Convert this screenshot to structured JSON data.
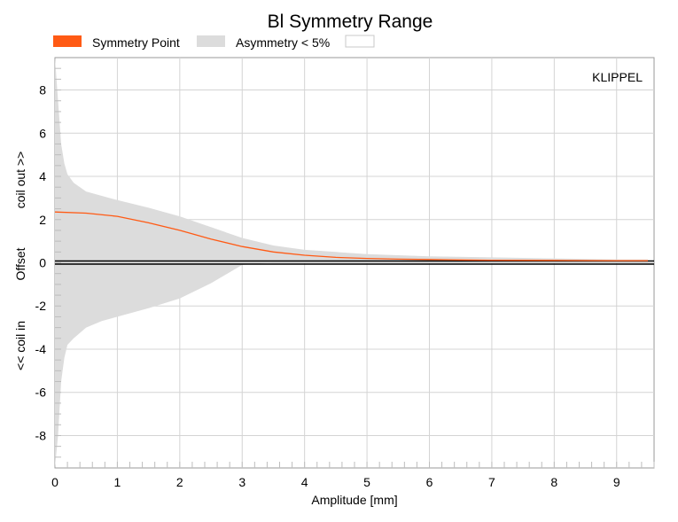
{
  "chart_data": {
    "type": "area",
    "title": "Bl Symmetry Range",
    "xlabel": "Amplitude [mm]",
    "ylabel": {
      "top": "coil out >>",
      "middle": "Offset",
      "bottom": "<< coil in"
    },
    "xlim": [
      0,
      9.6
    ],
    "ylim": [
      -9.5,
      9.5
    ],
    "x_ticks": [
      "0",
      "1",
      "2",
      "3",
      "4",
      "5",
      "6",
      "7",
      "8",
      "9"
    ],
    "y_ticks": [
      "8",
      "6",
      "4",
      "2",
      "0",
      "-2",
      "-4",
      "-6",
      "-8"
    ],
    "grid": true,
    "watermark": "KLIPPEL",
    "legend": {
      "placement": "top-left",
      "entries": [
        {
          "label": "Symmetry Point",
          "color": "#ff5a14"
        },
        {
          "label": "Asymmetry < 5%",
          "color": "#dcdcdc"
        }
      ]
    },
    "series": [
      {
        "name": "Symmetry Point",
        "color": "#ff5a14",
        "x": [
          0,
          0.5,
          1.0,
          1.5,
          2.0,
          2.5,
          3.0,
          3.5,
          4.0,
          4.5,
          5.0,
          5.5,
          6.0,
          6.5,
          7.0,
          8.0,
          9.0,
          9.5
        ],
        "y": [
          2.35,
          2.3,
          2.15,
          1.85,
          1.5,
          1.1,
          0.75,
          0.5,
          0.35,
          0.25,
          0.2,
          0.17,
          0.15,
          0.13,
          0.12,
          0.11,
          0.1,
          0.1
        ]
      },
      {
        "name": "Asymmetry < 5%",
        "color": "#dcdcdc",
        "x": [
          0,
          0.05,
          0.1,
          0.15,
          0.2,
          0.3,
          0.5,
          0.75,
          1.0,
          1.5,
          2.0,
          2.5,
          3.0,
          3.5,
          4.0,
          4.5,
          5.0,
          6.0,
          7.0,
          8.0,
          9.0,
          9.5
        ],
        "upper": [
          9.5,
          7.5,
          5.5,
          4.6,
          4.1,
          3.7,
          3.3,
          3.1,
          2.9,
          2.55,
          2.15,
          1.65,
          1.15,
          0.8,
          0.6,
          0.5,
          0.4,
          0.3,
          0.25,
          0.2,
          0.15,
          0.15
        ],
        "lower": [
          -9.5,
          -8.0,
          -5.5,
          -4.4,
          -3.8,
          -3.5,
          -3.0,
          -2.7,
          -2.5,
          -2.1,
          -1.65,
          -0.95,
          -0.1,
          0,
          0,
          0,
          0,
          0,
          0,
          0,
          0,
          0
        ]
      }
    ]
  }
}
